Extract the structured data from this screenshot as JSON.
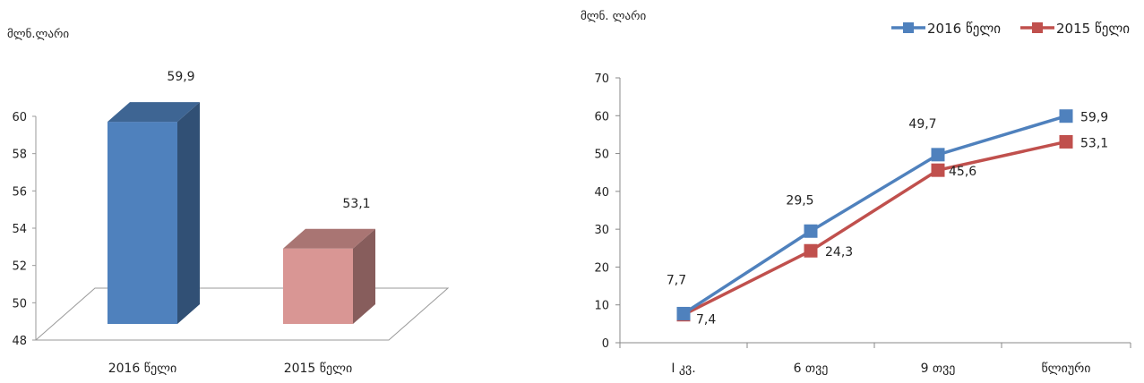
{
  "chart_data": [
    {
      "type": "bar",
      "unit_label": "მლნ.ლარი",
      "categories": [
        "2016 წელი",
        "2015 წელი"
      ],
      "values": [
        59.9,
        53.1
      ],
      "data_labels": [
        "59,9",
        "53,1"
      ],
      "colors": [
        "#4f81bd",
        "#d99694"
      ],
      "ylim": [
        48,
        60
      ],
      "yticks": [
        "48",
        "50",
        "52",
        "54",
        "56",
        "58",
        "60"
      ],
      "style": "3d-column"
    },
    {
      "type": "line",
      "unit_label": "მლნ. ლარი",
      "categories": [
        "I კვ.",
        "6 თვე",
        "9 თვე",
        "წლიური"
      ],
      "ylim": [
        0,
        70
      ],
      "yticks": [
        "0",
        "10",
        "20",
        "30",
        "40",
        "50",
        "60",
        "70"
      ],
      "legend_position": "top-right",
      "series": [
        {
          "name": "2016 წელი",
          "values": [
            7.7,
            29.5,
            49.7,
            59.9
          ],
          "labels": [
            "7,7",
            "29,5",
            "49,7",
            "59,9"
          ],
          "color": "#4f81bd"
        },
        {
          "name": "2015 წელი",
          "values": [
            7.4,
            24.3,
            45.6,
            53.1
          ],
          "labels": [
            "7,4",
            "24,3",
            "45,6",
            "53,1"
          ],
          "color": "#c0504d"
        }
      ]
    }
  ]
}
